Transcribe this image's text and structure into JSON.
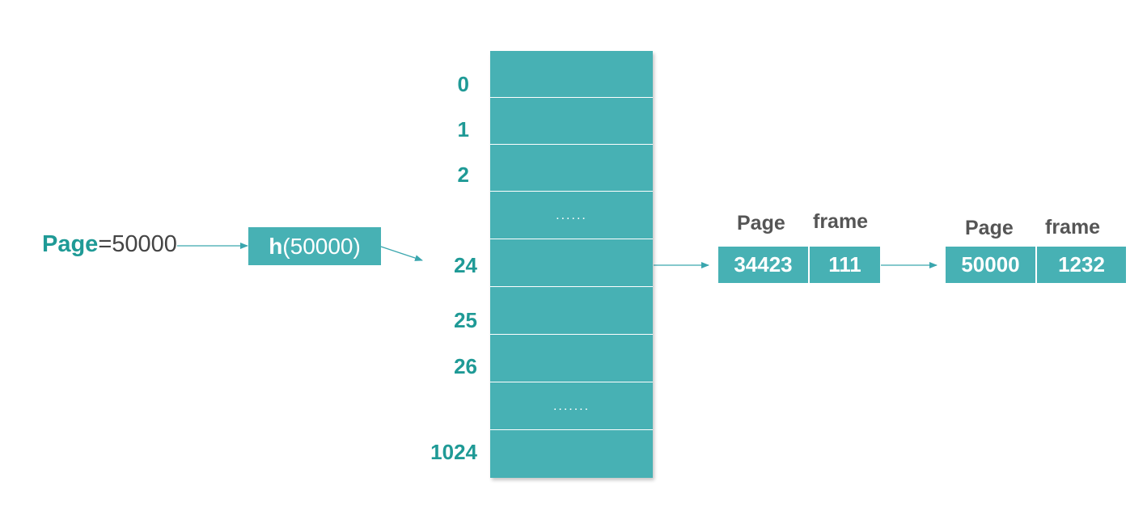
{
  "input": {
    "keyword": "Page",
    "rest": "=50000"
  },
  "hash": {
    "fn": "h",
    "arg": "(50000)"
  },
  "table": {
    "slots": [
      {
        "index": "0",
        "content": ""
      },
      {
        "index": "1",
        "content": ""
      },
      {
        "index": "2",
        "content": ""
      },
      {
        "index": "",
        "content": "......"
      },
      {
        "index": "24",
        "content": ""
      },
      {
        "index": "25",
        "content": ""
      },
      {
        "index": "26",
        "content": ""
      },
      {
        "index": "",
        "content": "......."
      },
      {
        "index": "1024",
        "content": ""
      }
    ]
  },
  "nodes": [
    {
      "page_header": "Page",
      "frame_header": "frame",
      "page": "34423",
      "frame": "111"
    },
    {
      "page_header": "Page",
      "frame_header": "frame",
      "page": "50000",
      "frame": "1232"
    }
  ],
  "colors": {
    "teal": "#47b1b4",
    "label_teal": "#1f9a96",
    "arrow": "#3aa6ae"
  }
}
